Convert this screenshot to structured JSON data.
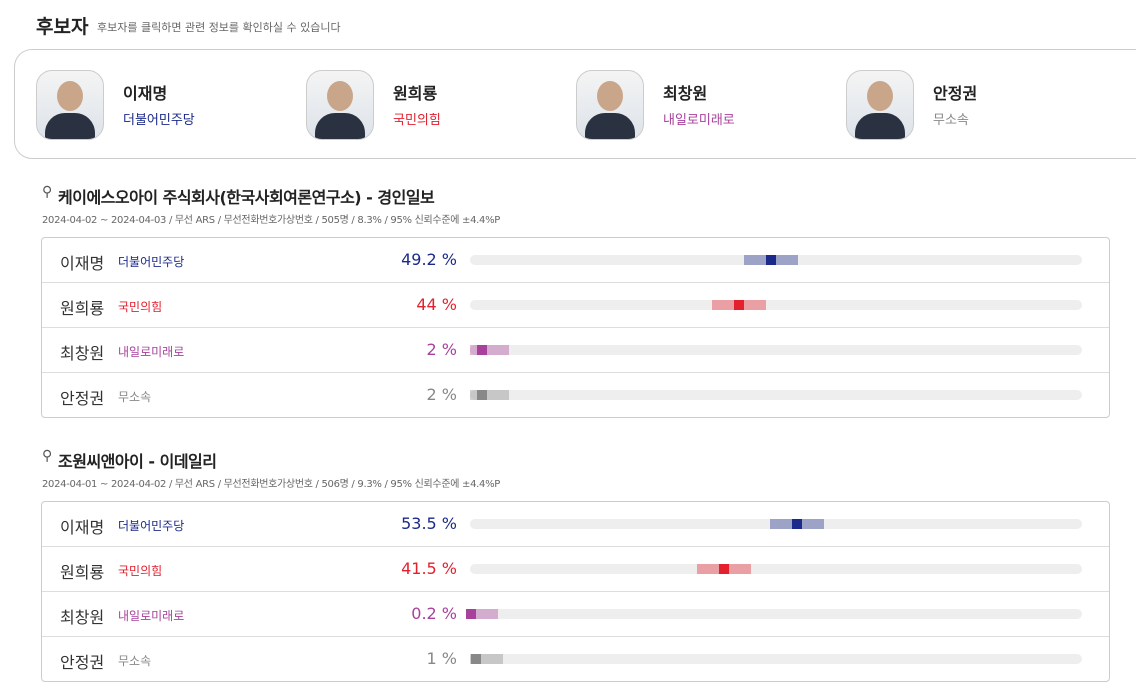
{
  "header": {
    "title": "후보자",
    "subtitle": "후보자를 클릭하면 관련 정보를 확인하실 수 있습니다"
  },
  "candidates": [
    {
      "name": "이재명",
      "party": "더불어민주당",
      "color": "#1b2a8a"
    },
    {
      "name": "원희룡",
      "party": "국민의힘",
      "color": "#e3202e"
    },
    {
      "name": "최창원",
      "party": "내일로미래로",
      "color": "#a8419c"
    },
    {
      "name": "안정권",
      "party": "무소속",
      "color": "#888888"
    }
  ],
  "polls": [
    {
      "title": "케이에스오아이 주식회사(한국사회여론연구소) - 경인일보",
      "meta": "2024-04-02 ~ 2024-04-03 / 무선 ARS / 무선전화번호가상번호 / 505명 / 8.3% / 95% 신뢰수준에 ±4.4%P",
      "margin": 4.4,
      "rows": [
        {
          "name": "이재명",
          "party": "더불어민주당",
          "color": "#1b2a8a",
          "value": 49.2,
          "value_label": "49.2 %"
        },
        {
          "name": "원희룡",
          "party": "국민의힘",
          "color": "#e3202e",
          "value": 44,
          "value_label": "44 %"
        },
        {
          "name": "최창원",
          "party": "내일로미래로",
          "color": "#a8419c",
          "value": 2,
          "value_label": "2 %"
        },
        {
          "name": "안정권",
          "party": "무소속",
          "color": "#888888",
          "value": 2,
          "value_label": "2 %"
        }
      ]
    },
    {
      "title": "조원씨앤아이 - 이데일리",
      "meta": "2024-04-01 ~ 2024-04-02 / 무선 ARS / 무선전화번호가상번호 / 506명 / 9.3% / 95% 신뢰수준에 ±4.4%P",
      "margin": 4.4,
      "rows": [
        {
          "name": "이재명",
          "party": "더불어민주당",
          "color": "#1b2a8a",
          "value": 53.5,
          "value_label": "53.5 %"
        },
        {
          "name": "원희룡",
          "party": "국민의힘",
          "color": "#e3202e",
          "value": 41.5,
          "value_label": "41.5 %"
        },
        {
          "name": "최창원",
          "party": "내일로미래로",
          "color": "#a8419c",
          "value": 0.2,
          "value_label": "0.2 %"
        },
        {
          "name": "안정권",
          "party": "무소속",
          "color": "#888888",
          "value": 1,
          "value_label": "1 %"
        }
      ]
    }
  ]
}
